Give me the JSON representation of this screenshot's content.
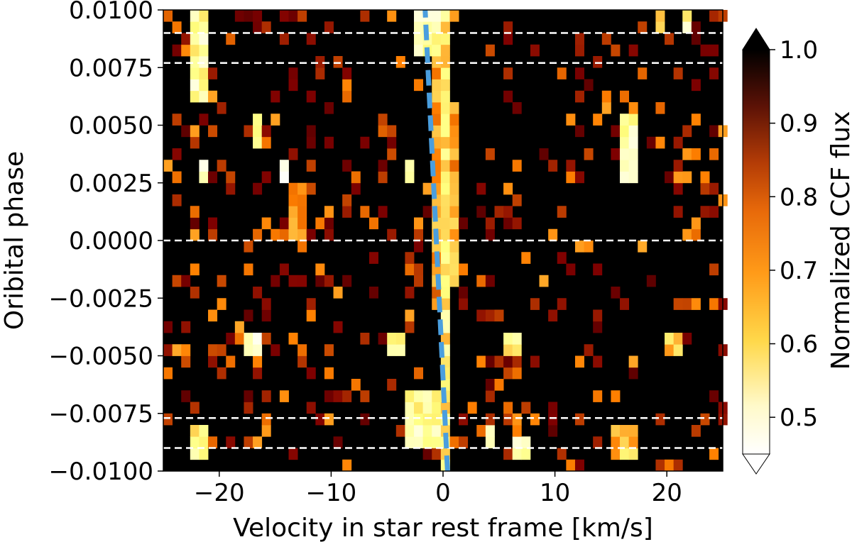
{
  "chart_data": {
    "type": "heatmap",
    "xlabel": "Velocity in star rest frame [km/s]",
    "ylabel": "Oribital phase",
    "xlim": [
      -25,
      25
    ],
    "ylim": [
      -0.01,
      0.01
    ],
    "x_ticks": [
      -20,
      -10,
      0,
      10,
      20
    ],
    "x_tick_labels": [
      "−20",
      "−10",
      "0",
      "10",
      "20"
    ],
    "y_ticks": [
      -0.01,
      -0.0075,
      -0.005,
      -0.0025,
      0.0,
      0.0025,
      0.005,
      0.0075,
      0.01
    ],
    "y_tick_labels": [
      "−0.0100",
      "−0.0075",
      "−0.0050",
      "−0.0025",
      "0.0000",
      "0.0025",
      "0.0050",
      "0.0075",
      "0.0100"
    ],
    "colorbar": {
      "label": "Normalized CCF flux",
      "colormap": "afmhot",
      "range": [
        0.45,
        1.0
      ],
      "ticks": [
        0.5,
        0.6,
        0.7,
        0.8,
        0.9,
        1.0
      ],
      "tick_labels": [
        "0.5",
        "0.6",
        "0.7",
        "0.8",
        "0.9",
        "1.0"
      ],
      "extend": "both"
    },
    "grid": {
      "x_bin_edges_start": -25,
      "x_bin_width": 0.8,
      "x_bins": 63,
      "y_bin_edges_start": -0.01,
      "y_bin_width": 0.0005,
      "y_bins": 40,
      "background_value": 1.0,
      "features": [
        {
          "x": [
            0.0,
            0.8
          ],
          "y": [
            -0.01,
            0.01
          ],
          "value": 0.6
        },
        {
          "x": [
            -1.2,
            -0.4
          ],
          "y": [
            -0.003,
            0.01
          ],
          "value": 0.7
        },
        {
          "x": [
            0.8,
            1.6
          ],
          "y": [
            -0.002,
            0.006
          ],
          "value": 0.68
        },
        {
          "x": [
            -3.6,
            -0.4
          ],
          "y": [
            -0.009,
            -0.0065
          ],
          "value": 0.55
        },
        {
          "x": [
            -3.6,
            -2.4
          ],
          "y": [
            0.0025,
            0.0035
          ],
          "value": 0.5
        },
        {
          "x": [
            -2.2,
            -0.2
          ],
          "y": [
            0.008,
            0.01
          ],
          "value": 0.55
        },
        {
          "x": [
            -13.8,
            -12.2
          ],
          "y": [
            0.0,
            0.0025
          ],
          "value": 0.7
        },
        {
          "x": [
            -14.2,
            -13.4
          ],
          "y": [
            0.0025,
            0.0035
          ],
          "value": 0.48
        },
        {
          "x": [
            -17.0,
            -16.2
          ],
          "y": [
            0.004,
            0.0055
          ],
          "value": 0.55
        },
        {
          "x": [
            -22.6,
            -21.0
          ],
          "y": [
            0.006,
            0.01
          ],
          "value": 0.55
        },
        {
          "x": [
            -22.2,
            -21.4
          ],
          "y": [
            0.0025,
            0.0035
          ],
          "value": 0.48
        },
        {
          "x": [
            -17.8,
            -16.2
          ],
          "y": [
            -0.005,
            -0.004
          ],
          "value": 0.48
        },
        {
          "x": [
            -22.6,
            -21.0
          ],
          "y": [
            -0.0095,
            -0.008
          ],
          "value": 0.6
        },
        {
          "x": [
            16.2,
            17.8
          ],
          "y": [
            0.0025,
            0.0055
          ],
          "value": 0.55
        },
        {
          "x": [
            19.4,
            20.2
          ],
          "y": [
            0.009,
            0.01
          ],
          "value": 0.6
        },
        {
          "x": [
            21.4,
            22.2
          ],
          "y": [
            0.009,
            0.01
          ],
          "value": 0.55
        },
        {
          "x": [
            5.4,
            7.0
          ],
          "y": [
            -0.005,
            -0.004
          ],
          "value": 0.6
        },
        {
          "x": [
            4.2,
            5.0
          ],
          "y": [
            -0.009,
            -0.008
          ],
          "value": 0.5
        },
        {
          "x": [
            6.6,
            7.4
          ],
          "y": [
            -0.0095,
            -0.0085
          ],
          "value": 0.5
        },
        {
          "x": [
            -5.0,
            -3.4
          ],
          "y": [
            -0.005,
            -0.004
          ],
          "value": 0.55
        },
        {
          "x": [
            15.0,
            17.0
          ],
          "y": [
            -0.0095,
            -0.008
          ],
          "value": 0.65
        },
        {
          "x": [
            20.2,
            21.8
          ],
          "y": [
            -0.005,
            -0.004
          ],
          "value": 0.65
        }
      ]
    },
    "hlines": [
      {
        "y": 0.009,
        "style": "dashed",
        "color": "#ffffff"
      },
      {
        "y": 0.0077,
        "style": "dashed",
        "color": "#ffffff"
      },
      {
        "y": 0.0,
        "style": "dashed",
        "color": "#ffffff"
      },
      {
        "y": -0.0077,
        "style": "dashed",
        "color": "#ffffff"
      },
      {
        "y": -0.009,
        "style": "dashed",
        "color": "#ffffff"
      }
    ],
    "trace_line": {
      "x_start": 0.4,
      "y_start": -0.01,
      "x_end": -1.6,
      "y_end": 0.01,
      "style": "dashed",
      "color": "#4a9ede"
    }
  }
}
